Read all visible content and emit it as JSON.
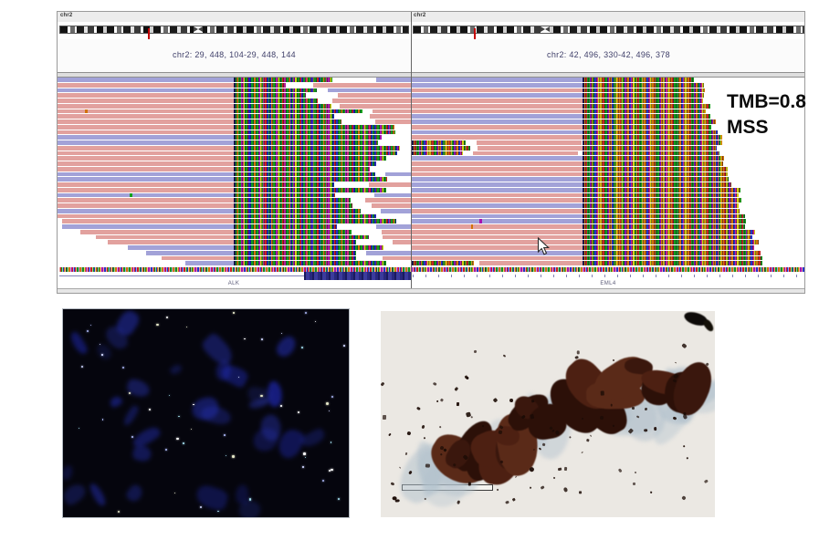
{
  "igv": {
    "panels": [
      {
        "chrom": "chr2",
        "locus": "chr2: 29, 448, 104-29, 448, 144",
        "gene_label": "ALK"
      },
      {
        "chrom": "chr2",
        "locus": "chr2: 42, 496, 330-42, 496, 378",
        "gene_label": "EML4"
      }
    ],
    "tmb_label": "TMB=0.8",
    "msi_label": "MSS"
  },
  "colors": {
    "read_pink": "#e2a19e",
    "read_blue": "#a2a2d8",
    "mismatch_green": "#12a01c",
    "mismatch_orange": "#d1720a",
    "mismatch_red": "#cf2020",
    "mismatch_blue": "#2030c8",
    "mismatch_purple": "#a812b0",
    "locus_text": "#40406a",
    "annotation_text": "#0a0a0a",
    "ihc_stain_brown": "#44200f",
    "fish_nucleus_blue": "#2a3bb0"
  }
}
